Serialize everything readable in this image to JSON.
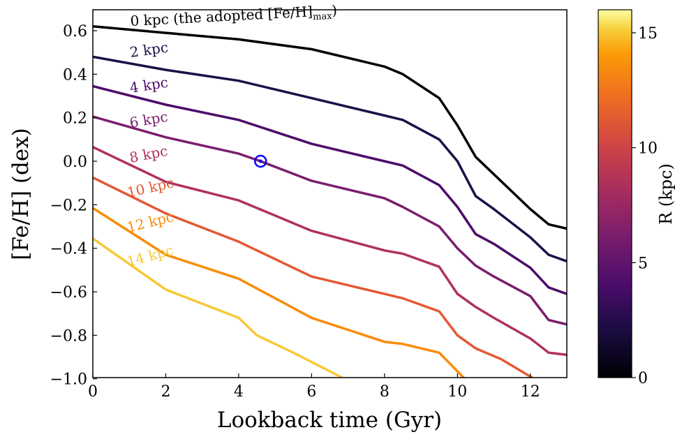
{
  "chart_data": {
    "type": "line",
    "xlabel": "Lookback time (Gyr)",
    "ylabel": "[Fe/H] (dex)",
    "xlim": [
      0,
      13
    ],
    "ylim": [
      -1.0,
      0.7
    ],
    "xticks": [
      0,
      2,
      4,
      6,
      8,
      10,
      12
    ],
    "yticks": [
      -1.0,
      -0.8,
      -0.6,
      -0.4,
      -0.2,
      0.0,
      0.2,
      0.4,
      0.6
    ],
    "grid": false,
    "series": [
      {
        "name": "0 kpc (the adopted [Fe/H]",
        "name_sub": "max",
        "name_end": ")",
        "color": "#000000",
        "x": [
          0,
          2,
          4,
          6,
          8,
          8.5,
          9.5,
          10,
          10.5,
          11,
          12,
          12.5,
          13
        ],
        "y": [
          0.62,
          0.59,
          0.56,
          0.515,
          0.435,
          0.4,
          0.29,
          0.165,
          0.02,
          -0.06,
          -0.22,
          -0.29,
          -0.31
        ]
      },
      {
        "name": "2 kpc",
        "color": "#1e0f47",
        "x": [
          0,
          2,
          4,
          6,
          8,
          8.5,
          9.5,
          10,
          10.5,
          11,
          12,
          12.5,
          13
        ],
        "y": [
          0.48,
          0.42,
          0.37,
          0.29,
          0.21,
          0.19,
          0.1,
          0.0,
          -0.16,
          -0.22,
          -0.35,
          -0.43,
          -0.46
        ]
      },
      {
        "name": "4 kpc",
        "color": "#4c0c6b",
        "x": [
          0,
          2,
          4,
          6,
          8,
          8.5,
          9.5,
          10,
          10.5,
          11,
          12,
          12.5,
          13
        ],
        "y": [
          0.345,
          0.26,
          0.19,
          0.08,
          0.0,
          -0.02,
          -0.11,
          -0.21,
          -0.335,
          -0.38,
          -0.49,
          -0.58,
          -0.61
        ]
      },
      {
        "name": "6 kpc",
        "color": "#7b1e6e",
        "x": [
          0,
          2,
          4,
          4.6,
          6,
          8,
          8.5,
          9.5,
          10,
          10.5,
          11,
          12,
          12.5,
          13
        ],
        "y": [
          0.205,
          0.11,
          0.035,
          0.0,
          -0.09,
          -0.17,
          -0.21,
          -0.3,
          -0.4,
          -0.48,
          -0.53,
          -0.62,
          -0.73,
          -0.75
        ]
      },
      {
        "name": "8 kpc",
        "color": "#b0325a",
        "x": [
          0,
          2,
          4,
          6,
          8,
          8.5,
          9.5,
          10,
          10.5,
          11,
          12,
          12.5,
          13
        ],
        "y": [
          0.065,
          -0.095,
          -0.18,
          -0.32,
          -0.41,
          -0.425,
          -0.485,
          -0.61,
          -0.67,
          -0.72,
          -0.815,
          -0.88,
          -0.89
        ]
      },
      {
        "name": "10 kpc",
        "color": "#e35933",
        "x": [
          0,
          2,
          4,
          6,
          8,
          8.5,
          9.5,
          10,
          10.5,
          11.2,
          12.1
        ],
        "y": [
          -0.075,
          -0.24,
          -0.37,
          -0.53,
          -0.61,
          -0.63,
          -0.69,
          -0.8,
          -0.86,
          -0.91,
          -1.0
        ]
      },
      {
        "name": "12 kpc",
        "color": "#f98c0a",
        "x": [
          0,
          2,
          4,
          6,
          8,
          8.5,
          9.5,
          10.2
        ],
        "y": [
          -0.215,
          -0.43,
          -0.54,
          -0.72,
          -0.83,
          -0.84,
          -0.88,
          -1.0
        ]
      },
      {
        "name": "14 kpc",
        "color": "#f6c93a",
        "x": [
          0,
          2,
          4,
          4.5,
          5.5,
          6.9
        ],
        "y": [
          -0.355,
          -0.59,
          -0.72,
          -0.8,
          -0.88,
          -1.0
        ]
      }
    ],
    "marker": {
      "symbol": "sun",
      "x": 4.6,
      "y": 0.0,
      "color": "#0000ff"
    },
    "colorbar": {
      "label": "R (kpc)",
      "range": [
        0,
        16
      ],
      "ticks": [
        0,
        5,
        10,
        15
      ],
      "colormap": "inferno"
    }
  }
}
